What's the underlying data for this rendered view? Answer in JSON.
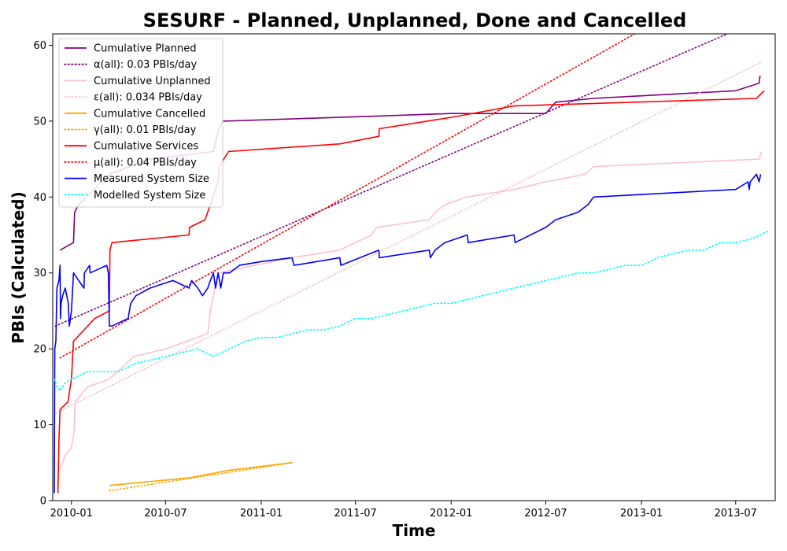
{
  "chart_data": {
    "type": "line",
    "title": "SESURF - Planned, Unplanned, Done  and Cancelled",
    "xlabel": "Time",
    "ylabel": "PBIs (Calculated)",
    "xlim": [
      "2009-11-26",
      "2013-09-15"
    ],
    "ylim": [
      0,
      61.5
    ],
    "x_ticks": [
      "2010-01",
      "2010-07",
      "2011-01",
      "2011-07",
      "2012-01",
      "2012-07",
      "2013-01",
      "2013-07"
    ],
    "y_ticks": [
      0,
      10,
      20,
      30,
      40,
      50,
      60
    ],
    "grid": false,
    "legend_position": "top-left",
    "series": [
      {
        "name": "Cumulative Planned",
        "color": "#800080",
        "style": "solid",
        "points": [
          [
            "2009-12-10",
            33
          ],
          [
            "2010-01-05",
            34
          ],
          [
            "2010-01-07",
            38
          ],
          [
            "2010-01-15",
            39
          ],
          [
            "2010-03-15",
            43
          ],
          [
            "2010-06-01",
            45
          ],
          [
            "2010-10-01",
            46
          ],
          [
            "2010-10-08",
            48
          ],
          [
            "2010-10-12",
            49
          ],
          [
            "2010-10-18",
            50
          ],
          [
            "2011-06-01",
            50.5
          ],
          [
            "2012-01-01",
            51
          ],
          [
            "2012-07-01",
            51
          ],
          [
            "2012-07-20",
            52.5
          ],
          [
            "2012-10-01",
            53
          ],
          [
            "2013-07-01",
            54
          ],
          [
            "2013-08-15",
            55
          ],
          [
            "2013-08-17",
            56
          ]
        ]
      },
      {
        "name": "α(all): 0.03 PBIs/day",
        "color": "#800080",
        "style": "dotted",
        "points": [
          [
            "2009-12-01",
            23
          ],
          [
            "2013-06-15",
            61.5
          ]
        ]
      },
      {
        "name": "Cumulative Unplanned",
        "color": "#ffc0cb",
        "style": "solid",
        "points": [
          [
            "2009-12-10",
            4
          ],
          [
            "2009-12-20",
            6
          ],
          [
            "2010-01-01",
            7
          ],
          [
            "2010-01-06",
            9
          ],
          [
            "2010-01-08",
            13
          ],
          [
            "2010-02-01",
            15
          ],
          [
            "2010-03-15",
            16
          ],
          [
            "2010-05-01",
            19
          ],
          [
            "2010-07-01",
            20
          ],
          [
            "2010-09-20",
            22
          ],
          [
            "2010-09-25",
            25
          ],
          [
            "2010-10-01",
            27
          ],
          [
            "2010-10-10",
            30
          ],
          [
            "2011-03-01",
            32
          ],
          [
            "2011-06-01",
            33
          ],
          [
            "2011-08-01",
            35
          ],
          [
            "2011-08-10",
            36
          ],
          [
            "2011-11-20",
            37
          ],
          [
            "2011-12-01",
            38
          ],
          [
            "2011-12-20",
            39
          ],
          [
            "2012-02-01",
            40
          ],
          [
            "2012-05-01",
            41
          ],
          [
            "2012-07-01",
            42
          ],
          [
            "2012-09-15",
            43
          ],
          [
            "2012-10-01",
            44
          ],
          [
            "2013-08-15",
            45
          ],
          [
            "2013-08-20",
            46
          ]
        ]
      },
      {
        "name": "ε(all): 0.034 PBIs/day",
        "color": "#ffc0cb",
        "style": "dotted",
        "points": [
          [
            "2009-12-01",
            11.5
          ],
          [
            "2013-08-20",
            57.8
          ]
        ]
      },
      {
        "name": "Cumulative Cancelled",
        "color": "#ffa500",
        "style": "solid",
        "points": [
          [
            "2010-03-15",
            2
          ],
          [
            "2010-08-15",
            3
          ],
          [
            "2010-11-01",
            4
          ],
          [
            "2011-03-01",
            5
          ]
        ]
      },
      {
        "name": "γ(all): 0.01 PBIs/day",
        "color": "#ffa500",
        "style": "dotted",
        "points": [
          [
            "2010-03-15",
            1.3
          ],
          [
            "2011-03-01",
            5
          ]
        ]
      },
      {
        "name": "Cumulative Services",
        "color": "#ff0000",
        "style": "solid",
        "points": [
          [
            "2009-12-06",
            1
          ],
          [
            "2009-12-08",
            8
          ],
          [
            "2009-12-10",
            12
          ],
          [
            "2009-12-25",
            13
          ],
          [
            "2010-01-01",
            16
          ],
          [
            "2010-01-05",
            21
          ],
          [
            "2010-02-15",
            24
          ],
          [
            "2010-03-15",
            25
          ],
          [
            "2010-03-16",
            33
          ],
          [
            "2010-03-20",
            34
          ],
          [
            "2010-08-15",
            35
          ],
          [
            "2010-08-16",
            36
          ],
          [
            "2010-09-15",
            37
          ],
          [
            "2010-10-10",
            42
          ],
          [
            "2010-10-12",
            44
          ],
          [
            "2010-10-30",
            46
          ],
          [
            "2011-06-01",
            47
          ],
          [
            "2011-08-15",
            48
          ],
          [
            "2011-08-16",
            49
          ],
          [
            "2012-01-01",
            50.5
          ],
          [
            "2012-05-01",
            52
          ],
          [
            "2013-08-10",
            53
          ],
          [
            "2013-08-25",
            54
          ]
        ]
      },
      {
        "name": "μ(all): 0.04 PBIs/day",
        "color": "#ff0000",
        "style": "dotted",
        "points": [
          [
            "2009-12-10",
            18.8
          ],
          [
            "2013-01-01",
            62
          ]
        ]
      },
      {
        "name": "Measured System Size",
        "color": "#0000ff",
        "style": "solid",
        "points": [
          [
            "2009-11-29",
            1
          ],
          [
            "2009-11-30",
            20
          ],
          [
            "2009-12-02",
            21
          ],
          [
            "2009-12-04",
            28
          ],
          [
            "2009-12-08",
            29
          ],
          [
            "2009-12-10",
            31
          ],
          [
            "2009-12-11",
            24
          ],
          [
            "2009-12-12",
            26
          ],
          [
            "2009-12-15",
            27
          ],
          [
            "2009-12-20",
            28
          ],
          [
            "2009-12-26",
            26
          ],
          [
            "2009-12-28",
            23
          ],
          [
            "2010-01-01",
            25
          ],
          [
            "2010-01-05",
            30
          ],
          [
            "2010-01-15",
            29
          ],
          [
            "2010-01-25",
            28
          ],
          [
            "2010-01-26",
            30
          ],
          [
            "2010-02-05",
            31
          ],
          [
            "2010-02-06",
            30
          ],
          [
            "2010-03-10",
            31
          ],
          [
            "2010-03-13",
            30
          ],
          [
            "2010-03-15",
            23
          ],
          [
            "2010-03-20",
            23
          ],
          [
            "2010-04-20",
            24
          ],
          [
            "2010-04-25",
            26
          ],
          [
            "2010-05-05",
            27
          ],
          [
            "2010-06-01",
            28
          ],
          [
            "2010-07-15",
            29
          ],
          [
            "2010-08-15",
            28
          ],
          [
            "2010-08-20",
            29
          ],
          [
            "2010-09-01",
            28
          ],
          [
            "2010-09-10",
            27
          ],
          [
            "2010-09-20",
            28
          ],
          [
            "2010-09-25",
            29
          ],
          [
            "2010-10-01",
            30
          ],
          [
            "2010-10-05",
            28
          ],
          [
            "2010-10-10",
            30
          ],
          [
            "2010-10-15",
            28
          ],
          [
            "2010-10-20",
            30
          ],
          [
            "2010-10-25",
            30
          ],
          [
            "2010-11-01",
            30
          ],
          [
            "2010-11-20",
            31
          ],
          [
            "2011-01-01",
            31.5
          ],
          [
            "2011-03-01",
            32
          ],
          [
            "2011-03-05",
            31
          ],
          [
            "2011-06-01",
            32
          ],
          [
            "2011-06-03",
            31
          ],
          [
            "2011-08-15",
            33
          ],
          [
            "2011-08-16",
            32
          ],
          [
            "2011-11-20",
            33
          ],
          [
            "2011-11-22",
            32
          ],
          [
            "2011-12-01",
            33
          ],
          [
            "2011-12-20",
            34
          ],
          [
            "2012-02-01",
            35
          ],
          [
            "2012-02-03",
            34
          ],
          [
            "2012-05-01",
            35
          ],
          [
            "2012-05-03",
            34
          ],
          [
            "2012-07-01",
            36
          ],
          [
            "2012-07-20",
            37
          ],
          [
            "2012-09-01",
            38
          ],
          [
            "2012-09-20",
            39
          ],
          [
            "2012-10-01",
            40
          ],
          [
            "2013-07-01",
            41
          ],
          [
            "2013-07-25",
            42
          ],
          [
            "2013-07-27",
            41
          ],
          [
            "2013-07-29",
            42
          ],
          [
            "2013-08-10",
            43
          ],
          [
            "2013-08-15",
            42
          ],
          [
            "2013-08-18",
            43
          ]
        ]
      },
      {
        "name": "Modelled System Size",
        "color": "#00ffff",
        "style": "dotted",
        "points": [
          [
            "2009-11-29",
            16
          ],
          [
            "2009-12-05",
            15
          ],
          [
            "2009-12-10",
            14.5
          ],
          [
            "2009-12-20",
            15.5
          ],
          [
            "2010-01-01",
            16
          ],
          [
            "2010-02-01",
            17
          ],
          [
            "2010-04-01",
            17
          ],
          [
            "2010-05-01",
            18
          ],
          [
            "2010-06-01",
            18.5
          ],
          [
            "2010-07-01",
            19
          ],
          [
            "2010-08-01",
            19.5
          ],
          [
            "2010-09-01",
            20
          ],
          [
            "2010-10-01",
            19
          ],
          [
            "2010-11-01",
            20
          ],
          [
            "2010-12-01",
            21
          ],
          [
            "2011-01-01",
            21.5
          ],
          [
            "2011-02-01",
            21.5
          ],
          [
            "2011-03-01",
            22
          ],
          [
            "2011-04-01",
            22.5
          ],
          [
            "2011-05-01",
            22.5
          ],
          [
            "2011-06-01",
            23
          ],
          [
            "2011-07-01",
            24
          ],
          [
            "2011-08-01",
            24
          ],
          [
            "2011-09-01",
            24.5
          ],
          [
            "2011-10-01",
            25
          ],
          [
            "2011-11-01",
            25.5
          ],
          [
            "2011-12-01",
            26
          ],
          [
            "2012-01-01",
            26
          ],
          [
            "2012-02-01",
            26.5
          ],
          [
            "2012-03-01",
            27
          ],
          [
            "2012-04-01",
            27.5
          ],
          [
            "2012-05-01",
            28
          ],
          [
            "2012-06-01",
            28.5
          ],
          [
            "2012-07-01",
            29
          ],
          [
            "2012-08-01",
            29.5
          ],
          [
            "2012-09-01",
            30
          ],
          [
            "2012-10-01",
            30
          ],
          [
            "2012-11-01",
            30.5
          ],
          [
            "2012-12-01",
            31
          ],
          [
            "2013-01-01",
            31
          ],
          [
            "2013-02-01",
            32
          ],
          [
            "2013-03-01",
            32.5
          ],
          [
            "2013-04-01",
            33
          ],
          [
            "2013-05-01",
            33
          ],
          [
            "2013-06-01",
            34
          ],
          [
            "2013-07-01",
            34
          ],
          [
            "2013-08-01",
            34.5
          ],
          [
            "2013-09-01",
            35.5
          ]
        ]
      }
    ]
  }
}
